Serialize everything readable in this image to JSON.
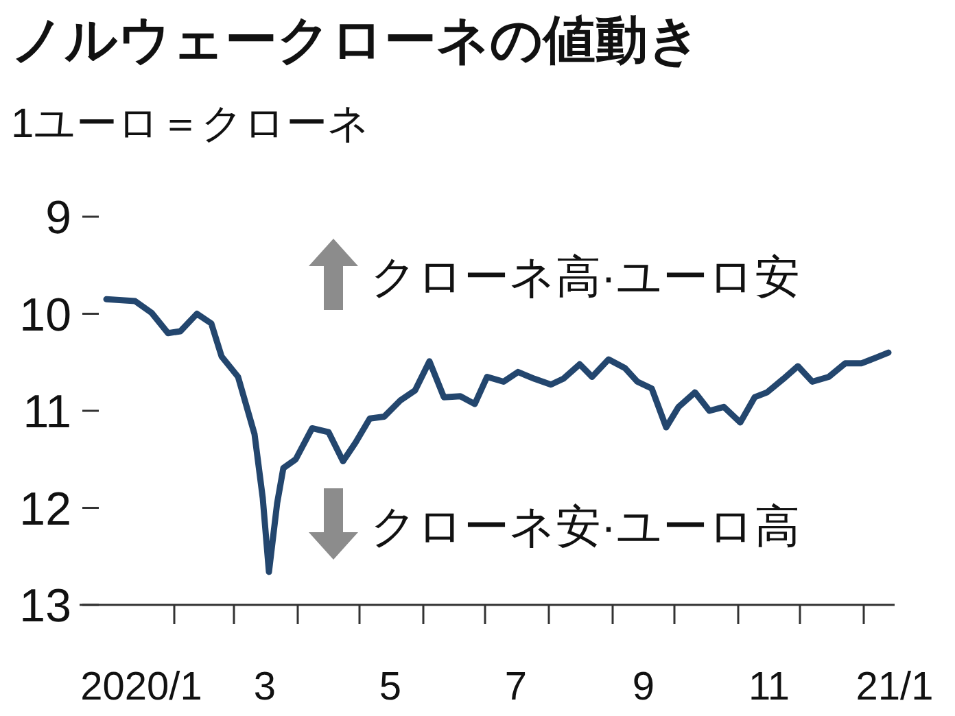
{
  "chart_data": {
    "type": "line",
    "title": "ノルウェークローネの値動き",
    "subtitle": "1ユーロ＝クローネ",
    "annotations": [
      "クローネ高·ユーロ安",
      "クローネ安·ユーロ高"
    ],
    "x": [
      "2019-12-30",
      "2020-01-13",
      "2020-01-21",
      "2020-01-29",
      "2020-02-04",
      "2020-02-12",
      "2020-02-19",
      "2020-02-24",
      "2020-03-03",
      "2020-03-11",
      "2020-03-15",
      "2020-03-18",
      "2020-03-22",
      "2020-03-25",
      "2020-03-31",
      "2020-04-08",
      "2020-04-16",
      "2020-04-23",
      "2020-04-29",
      "2020-05-06",
      "2020-05-13",
      "2020-05-21",
      "2020-05-28",
      "2020-06-04",
      "2020-06-11",
      "2020-06-19",
      "2020-06-26",
      "2020-07-02",
      "2020-07-10",
      "2020-07-17",
      "2020-07-25",
      "2020-08-02",
      "2020-08-08",
      "2020-08-16",
      "2020-08-22",
      "2020-08-30",
      "2020-09-07",
      "2020-09-13",
      "2020-09-20",
      "2020-09-27",
      "2020-10-03",
      "2020-10-11",
      "2020-10-18",
      "2020-10-25",
      "2020-11-02",
      "2020-11-09",
      "2020-11-15",
      "2020-11-23",
      "2020-11-30",
      "2020-12-07",
      "2020-12-15",
      "2020-12-23",
      "2020-12-31",
      "2021-01-06",
      "2021-01-13"
    ],
    "series": [
      {
        "color": "#23466e",
        "values": [
          9.85,
          9.87,
          9.99,
          10.2,
          10.18,
          10.0,
          10.1,
          10.44,
          10.65,
          11.24,
          11.9,
          12.66,
          11.95,
          11.59,
          11.5,
          11.18,
          11.22,
          11.52,
          11.33,
          11.08,
          11.06,
          10.89,
          10.79,
          10.49,
          10.86,
          10.85,
          10.93,
          10.65,
          10.7,
          10.6,
          10.67,
          10.73,
          10.67,
          10.52,
          10.65,
          10.47,
          10.56,
          10.7,
          10.77,
          11.17,
          10.96,
          10.81,
          11.0,
          10.96,
          11.12,
          10.86,
          10.81,
          10.67,
          10.54,
          10.7,
          10.65,
          10.51,
          10.51,
          10.46,
          10.4
        ]
      }
    ],
    "xlim": [
      "2019-12-17",
      "2021-01-16"
    ],
    "xticks": [
      {
        "value": "2020-01-16",
        "label": "2020/1"
      },
      {
        "value": "2020-02-01",
        "label": null
      },
      {
        "value": "2020-03-01",
        "label": null
      },
      {
        "value": "2020-03-16",
        "label": "3"
      },
      {
        "value": "2020-04-01",
        "label": null
      },
      {
        "value": "2020-05-01",
        "label": null
      },
      {
        "value": "2020-05-16",
        "label": "5"
      },
      {
        "value": "2020-06-01",
        "label": null
      },
      {
        "value": "2020-07-01",
        "label": null
      },
      {
        "value": "2020-07-16",
        "label": "7"
      },
      {
        "value": "2020-08-01",
        "label": null
      },
      {
        "value": "2020-09-01",
        "label": null
      },
      {
        "value": "2020-09-16",
        "label": "9"
      },
      {
        "value": "2020-10-01",
        "label": null
      },
      {
        "value": "2020-11-01",
        "label": null
      },
      {
        "value": "2020-11-16",
        "label": "11"
      },
      {
        "value": "2020-12-01",
        "label": null
      },
      {
        "value": "2021-01-01",
        "label": null
      },
      {
        "value": "2021-01-16",
        "label": "21/1"
      }
    ],
    "ylim": [
      13,
      9
    ],
    "yticks": [
      9,
      10,
      11,
      12,
      13
    ],
    "grid": false,
    "marker": "none",
    "line_style": "solid"
  }
}
